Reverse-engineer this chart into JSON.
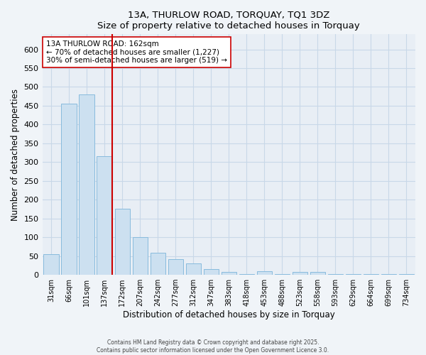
{
  "title": "13A, THURLOW ROAD, TORQUAY, TQ1 3DZ",
  "subtitle": "Size of property relative to detached houses in Torquay",
  "xlabel": "Distribution of detached houses by size in Torquay",
  "ylabel": "Number of detached properties",
  "categories": [
    "31sqm",
    "66sqm",
    "101sqm",
    "137sqm",
    "172sqm",
    "207sqm",
    "242sqm",
    "277sqm",
    "312sqm",
    "347sqm",
    "383sqm",
    "418sqm",
    "453sqm",
    "488sqm",
    "523sqm",
    "558sqm",
    "593sqm",
    "629sqm",
    "664sqm",
    "699sqm",
    "734sqm"
  ],
  "values": [
    55,
    455,
    480,
    315,
    175,
    100,
    58,
    42,
    30,
    15,
    7,
    2,
    10,
    2,
    8,
    8,
    2,
    2,
    2,
    2,
    2
  ],
  "bar_color": "#cce0f0",
  "bar_edge_color": "#88bbdd",
  "grid_color": "#c8d8e8",
  "bg_color": "#f0f4f8",
  "plot_bg_color": "#e8eef5",
  "vline_x_index": 3,
  "vline_color": "#cc0000",
  "annotation_text": "13A THURLOW ROAD: 162sqm\n← 70% of detached houses are smaller (1,227)\n30% of semi-detached houses are larger (519) →",
  "annotation_box_color": "#ffffff",
  "annotation_box_edge": "#cc0000",
  "footer1": "Contains HM Land Registry data © Crown copyright and database right 2025.",
  "footer2": "Contains public sector information licensed under the Open Government Licence 3.0.",
  "ylim": [
    0,
    640
  ],
  "yticks": [
    0,
    50,
    100,
    150,
    200,
    250,
    300,
    350,
    400,
    450,
    500,
    550,
    600
  ]
}
